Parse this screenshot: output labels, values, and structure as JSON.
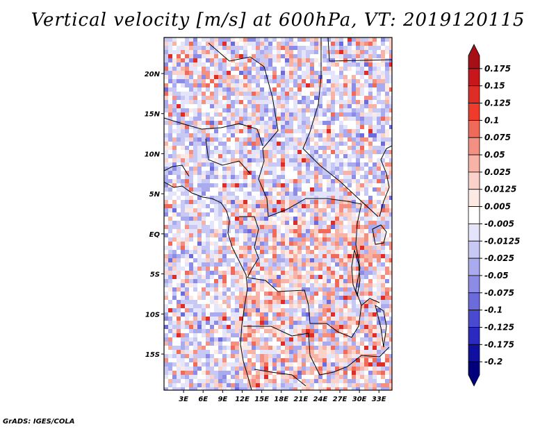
{
  "title": "Vertical velocity [m/s] at 600hPa, VT: 2019120115",
  "footer": "GrADS: IGES/COLA",
  "map": {
    "lat_labels": [
      "20N",
      "15N",
      "10N",
      "5N",
      "EQ",
      "5S",
      "10S",
      "15S"
    ],
    "lon_labels": [
      "3E",
      "6E",
      "9E",
      "12E",
      "15E",
      "18E",
      "21E",
      "24E",
      "27E",
      "30E",
      "33E"
    ],
    "lon_range": [
      0,
      35
    ],
    "lat_range": [
      -19.5,
      24.5
    ]
  },
  "colorbar": {
    "labels": [
      "0.175",
      "0.15",
      "0.125",
      "0.1",
      "0.075",
      "0.05",
      "0.025",
      "0.0125",
      "0.005",
      "-0.005",
      "-0.0125",
      "-0.025",
      "-0.05",
      "-0.075",
      "-0.1",
      "-0.125",
      "-0.175",
      "-0.2"
    ],
    "colors": [
      "#a50f15",
      "#c8161d",
      "#de2d26",
      "#ef3b2c",
      "#f06a5a",
      "#f49082",
      "#f8b3a7",
      "#fbd2ca",
      "#fde9e4",
      "#ffffff",
      "#e4e4fb",
      "#c8c8f5",
      "#aaaaee",
      "#8c8ce6",
      "#6b6bdc",
      "#4a4ad0",
      "#2a2ac0",
      "#0f0fa0",
      "#00007a"
    ]
  }
}
